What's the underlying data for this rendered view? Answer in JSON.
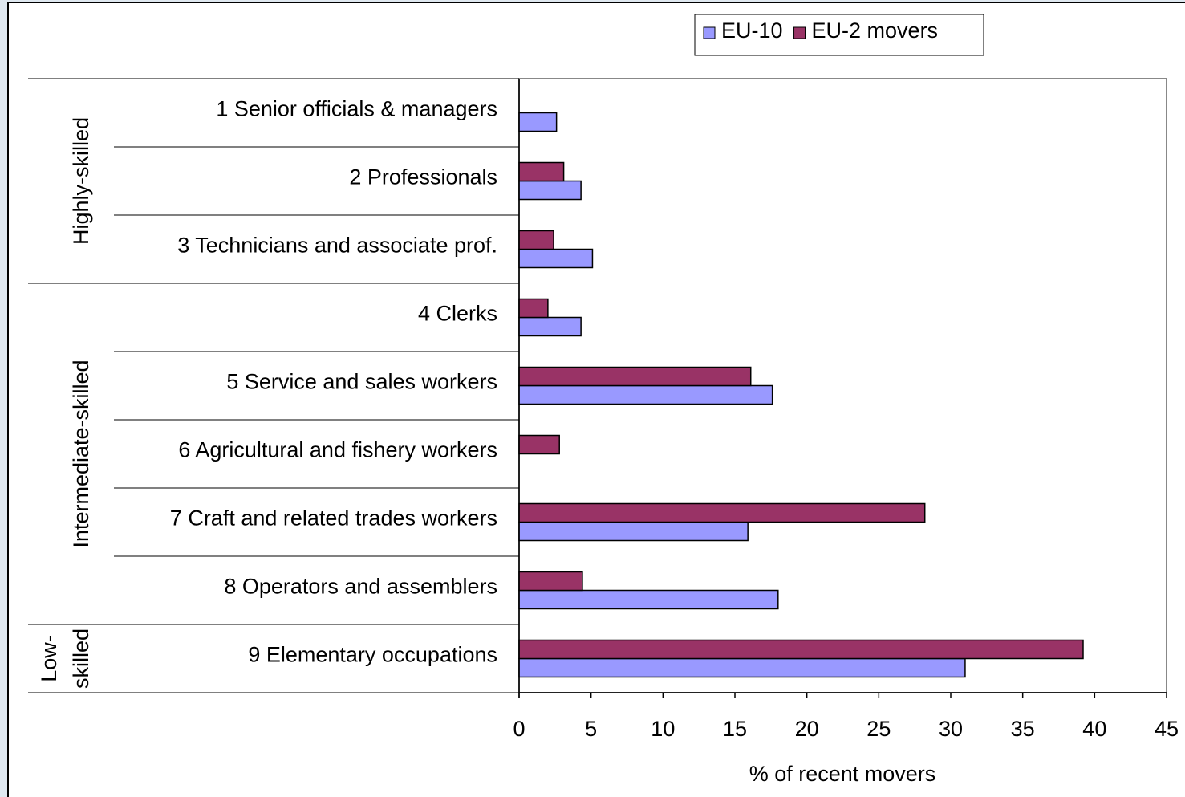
{
  "chart_data": {
    "type": "bar",
    "orientation": "horizontal",
    "x_label": "% of recent movers",
    "categories": [
      "1 Senior officials & managers",
      "2 Professionals",
      "3 Technicians and associate prof.",
      "4 Clerks",
      "5 Service and sales workers",
      "6 Agricultural and fishery workers",
      "7 Craft and related trades workers",
      "8 Operators and assemblers",
      "9 Elementary occupations"
    ],
    "groups": [
      {
        "lines": [
          "Highly-skilled"
        ],
        "start": 0,
        "end": 2
      },
      {
        "lines": [
          "Intermediate-skilled"
        ],
        "start": 3,
        "end": 7
      },
      {
        "lines": [
          "Low-",
          "skilled"
        ],
        "start": 8,
        "end": 8
      }
    ],
    "series": [
      {
        "name": "EU-10",
        "color": "#9999ff",
        "values": [
          2.6,
          4.3,
          5.1,
          4.3,
          17.6,
          0,
          15.9,
          18.0,
          31.0
        ]
      },
      {
        "name": "EU-2 movers",
        "color": "#993366",
        "values": [
          0,
          3.1,
          2.4,
          2.0,
          16.1,
          2.8,
          28.2,
          4.4,
          39.2
        ]
      }
    ],
    "xlim": [
      0,
      45
    ],
    "xticks": [
      0,
      5,
      10,
      15,
      20,
      25,
      30,
      35,
      40,
      45
    ],
    "legend": "top-right",
    "grid": false
  }
}
